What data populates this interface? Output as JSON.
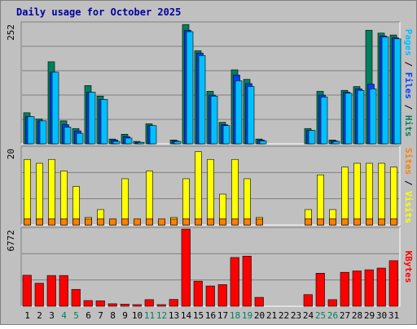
{
  "title": "Daily usage for October 2025",
  "panels": {
    "top": {
      "scale_label": "252",
      "axis_labels": [
        "Pages",
        "Files",
        "Hits"
      ],
      "separators": [
        " / ",
        " / "
      ]
    },
    "middle": {
      "scale_label": "20",
      "axis_labels": [
        "Sites",
        "Visits"
      ],
      "separators": [
        " / "
      ]
    },
    "bottom": {
      "scale_label": "6772",
      "axis_labels": [
        "KBytes"
      ],
      "separators": []
    }
  },
  "colors": {
    "background": "#C0C0C0",
    "frame": "#808080",
    "title": "#0000A0",
    "hits": "#00805C",
    "files": "#0040FF",
    "pages": "#00C0FF",
    "visits": "#FFFF00",
    "sites": "#FF8000",
    "kbytes": "#FF0000",
    "weekday_label": "#000000",
    "weekend_label": "#00805C",
    "separator": "#000000"
  },
  "chart_data": [
    {
      "type": "bar",
      "title": "Daily usage for October 2025",
      "categories": [
        "1",
        "2",
        "3",
        "4",
        "5",
        "6",
        "7",
        "8",
        "9",
        "10",
        "11",
        "12",
        "13",
        "14",
        "15",
        "16",
        "17",
        "18",
        "19",
        "20",
        "21",
        "22",
        "23",
        "24",
        "25",
        "26",
        "27",
        "28",
        "29",
        "30",
        "31"
      ],
      "weekend_days": [
        "4",
        "5",
        "11",
        "12",
        "18",
        "19",
        "25",
        "26"
      ],
      "ylim": [
        0,
        252
      ],
      "series": [
        {
          "name": "Hits",
          "values": [
            65,
            52,
            172,
            48,
            32,
            122,
            100,
            10,
            20,
            5,
            42,
            0,
            8,
            250,
            195,
            110,
            45,
            155,
            135,
            10,
            0,
            0,
            0,
            32,
            110,
            8,
            112,
            120,
            238,
            232,
            228
          ]
        },
        {
          "name": "Files",
          "values": [
            57,
            48,
            150,
            40,
            27,
            108,
            93,
            8,
            15,
            3,
            38,
            0,
            6,
            238,
            190,
            102,
            40,
            144,
            126,
            8,
            0,
            0,
            0,
            28,
            102,
            6,
            108,
            115,
            125,
            226,
            222
          ]
        },
        {
          "name": "Pages",
          "values": [
            57,
            48,
            150,
            35,
            22,
            108,
            93,
            5,
            12,
            3,
            38,
            0,
            5,
            235,
            185,
            100,
            38,
            132,
            120,
            6,
            0,
            0,
            0,
            28,
            98,
            5,
            106,
            112,
            115,
            224,
            220
          ]
        }
      ]
    },
    {
      "type": "bar",
      "categories": [
        "1",
        "2",
        "3",
        "4",
        "5",
        "6",
        "7",
        "8",
        "9",
        "10",
        "11",
        "12",
        "13",
        "14",
        "15",
        "16",
        "17",
        "18",
        "19",
        "20",
        "21",
        "22",
        "23",
        "24",
        "25",
        "26",
        "27",
        "28",
        "29",
        "30",
        "31"
      ],
      "ylim": [
        0,
        20
      ],
      "series": [
        {
          "name": "Visits",
          "values": [
            17,
            16,
            17,
            14,
            10,
            2,
            4,
            1,
            12,
            1,
            14,
            1,
            2,
            12,
            19,
            17,
            8,
            17,
            12,
            2,
            0,
            0,
            0,
            4,
            13,
            4,
            15,
            16,
            16,
            16,
            15
          ]
        },
        {
          "name": "Sites",
          "values": [
            1,
            1,
            1,
            1,
            1,
            1,
            1,
            1,
            1,
            1,
            1,
            1,
            1,
            1,
            1,
            1,
            1,
            1,
            1,
            1,
            0,
            0,
            0,
            1,
            1,
            1,
            1,
            1,
            1,
            1,
            1
          ]
        }
      ]
    },
    {
      "type": "bar",
      "categories": [
        "1",
        "2",
        "3",
        "4",
        "5",
        "6",
        "7",
        "8",
        "9",
        "10",
        "11",
        "12",
        "13",
        "14",
        "15",
        "16",
        "17",
        "18",
        "19",
        "20",
        "21",
        "22",
        "23",
        "24",
        "25",
        "26",
        "27",
        "28",
        "29",
        "30",
        "31"
      ],
      "ylim": [
        0,
        6772
      ],
      "series": [
        {
          "name": "KBytes",
          "values": [
            2720,
            2020,
            2700,
            2700,
            1480,
            500,
            480,
            220,
            180,
            120,
            580,
            20,
            600,
            6772,
            2200,
            1780,
            1900,
            4280,
            4400,
            780,
            0,
            0,
            0,
            1020,
            2900,
            580,
            2980,
            3100,
            3200,
            3350,
            4000
          ]
        }
      ]
    }
  ]
}
